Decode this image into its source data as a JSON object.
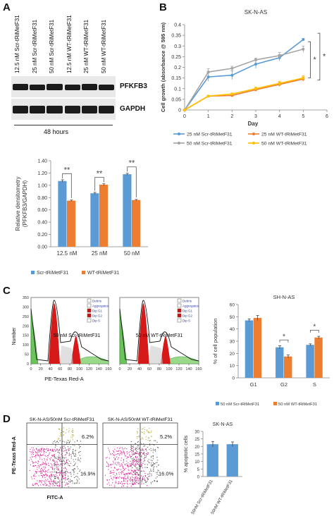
{
  "labels": {
    "A": "A",
    "B": "B",
    "C": "C",
    "D": "D"
  },
  "panelA": {
    "lanes": [
      "12.5 nM Scr-tRiMetF31",
      "25 nM Scr-tRiMetF31",
      "50 nM Scr-tRiMetF31",
      "12.5 nM WT-tRiMetF31",
      "25 nM WT-tRiMetF31",
      "50 nM WT-tRiMetF31"
    ],
    "blot1_label": "PFKFB3",
    "blot2_label": "GAPDH",
    "time_label": "48 hours",
    "sig_marks": [
      "**",
      "**",
      "**"
    ]
  },
  "panelB": {
    "title": "SK-N-AS",
    "sig_marks": [
      "*",
      "*"
    ]
  },
  "panelC": {
    "hist1_label": "50 nM Scr-tRiMetF31",
    "hist2_label": "50 nM WT-tRiMetF31",
    "hist_xlabel": "PE-Texas Red-A",
    "hist_ylabel": "Number",
    "hist_x_ticks": [
      "0",
      "20",
      "40",
      "60",
      "80",
      "100",
      "120",
      "140",
      "160"
    ],
    "hist_y_ticks": [
      "0",
      "50",
      "100",
      "150",
      "200",
      "250",
      "300",
      "350"
    ],
    "legend_items": [
      "Debris",
      "Aggregates",
      "Dip G1",
      "Dip G2",
      "Dip S"
    ],
    "legend_colors": [
      "#ffffff",
      "#ffffff",
      "#d01010",
      "#d01010",
      "#ffffff"
    ],
    "sig_marks": [
      "*",
      "*"
    ]
  },
  "panelD": {
    "flow1_title": "SK-N-AS/50nM Scr-tRiMetF31",
    "flow2_title": "SK-N-AS/50nM WT-tRiMetF31",
    "flow1_upper": "6.2%",
    "flow1_lower": "16.9%",
    "flow2_upper": "5.2%",
    "flow2_lower": "16.0%",
    "flow_ylabel": "PE-Texas Red-A",
    "flow_xlabel": "FITC-A"
  },
  "chart_data": [
    {
      "type": "bar",
      "ylabel": "Relative densitometry (PFKFB3/GAPDH)",
      "categories": [
        "12.5 nM",
        "25 nM",
        "50 nM"
      ],
      "ylim": [
        0,
        1.4
      ],
      "yticks": [
        "0.00",
        "0.20",
        "0.40",
        "0.60",
        "0.80",
        "1.00",
        "1.20",
        "1.40"
      ],
      "series": [
        {
          "name": "Scr-tRiMetF31",
          "color": "#5b9bd5",
          "values": [
            1.07,
            0.87,
            1.18
          ],
          "errors": [
            0.02,
            0.015,
            0.015
          ]
        },
        {
          "name": "WT-tRiMetF31",
          "color": "#ed7d31",
          "values": [
            0.75,
            1.01,
            0.76
          ],
          "errors": [
            0.01,
            0.015,
            0.01
          ]
        }
      ]
    },
    {
      "type": "line",
      "title": "SK-N-AS",
      "xlabel": "Day",
      "ylabel": "Cell growth (absorbance @ 595 nm)",
      "x": [
        0,
        1,
        2,
        3,
        4,
        5
      ],
      "xticks": [
        "0",
        "1",
        "2",
        "3",
        "4",
        "5",
        "6"
      ],
      "xlim": [
        0,
        6
      ],
      "ylim": [
        0,
        0.4
      ],
      "yticks": [
        "0",
        "0.05",
        "0.1",
        "0.15",
        "0.2",
        "0.25",
        "0.3",
        "0.35",
        "0.4"
      ],
      "series": [
        {
          "name": "25 nM Scr-tRiMetF31",
          "color": "#5b9bd5",
          "values": [
            0.0,
            0.155,
            0.163,
            0.215,
            0.245,
            0.33
          ],
          "errors": [
            0,
            0.02,
            0.02,
            0.02,
            0.015,
            0.005
          ]
        },
        {
          "name": "25 nM WT-tRiMetF31",
          "color": "#ed7d31",
          "values": [
            0.0,
            0.065,
            0.068,
            0.095,
            0.12,
            0.145
          ],
          "errors": [
            0,
            0.003,
            0.005,
            0.008,
            0.01,
            0.01
          ]
        },
        {
          "name": "50 nM Scr-tRiMetF31",
          "color": "#a5a5a5",
          "values": [
            0.0,
            0.178,
            0.195,
            0.235,
            0.255,
            0.285
          ],
          "errors": [
            0,
            0.015,
            0.01,
            0.008,
            0.015,
            0.015
          ]
        },
        {
          "name": "50 nM WT-tRiMetF31",
          "color": "#ffc000",
          "values": [
            0.0,
            0.065,
            0.075,
            0.1,
            0.125,
            0.15
          ],
          "errors": [
            0,
            0.003,
            0.005,
            0.008,
            0.01,
            0.01
          ]
        }
      ]
    },
    {
      "type": "bar",
      "title": "SH-N-AS",
      "ylabel": "% of cell population",
      "categories": [
        "G1",
        "G2",
        "S"
      ],
      "ylim": [
        0,
        60
      ],
      "yticks": [
        "0",
        "10",
        "20",
        "30",
        "40",
        "50",
        "60"
      ],
      "series": [
        {
          "name": "50 nM Scr-tRiMetF31",
          "color": "#5b9bd5",
          "values": [
            47,
            25,
            27
          ],
          "errors": [
            1.2,
            1.2,
            0.8
          ]
        },
        {
          "name": "50 nM WT-tRiMetF31",
          "color": "#ed7d31",
          "values": [
            49,
            17.5,
            33
          ],
          "errors": [
            2,
            1.2,
            1
          ]
        }
      ]
    },
    {
      "type": "bar",
      "title": "SK-N-AS",
      "ylabel": "% apoptotic cells",
      "categories": [
        "50nM Scr-tRiMetF31",
        "50nM WT-tRiMetF31"
      ],
      "ylim": [
        0,
        30
      ],
      "yticks": [
        "0",
        "5",
        "10",
        "15",
        "20",
        "25",
        "30"
      ],
      "series": [
        {
          "name": "",
          "color": "#5b9bd5",
          "values": [
            21.5,
            21.5
          ],
          "errors": [
            1.8,
            1.5
          ]
        }
      ]
    }
  ]
}
